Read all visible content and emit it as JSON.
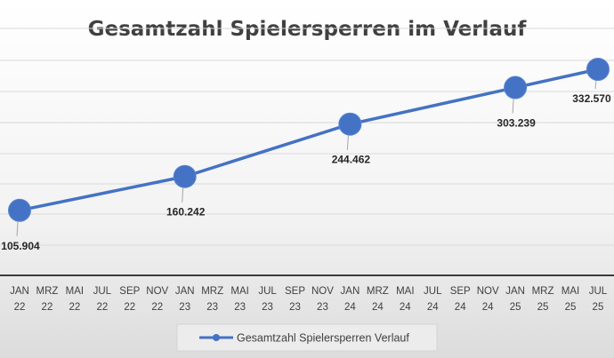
{
  "chart_data": {
    "type": "line",
    "title": "Gesamtzahl Spielersperren im Verlauf",
    "xlabel": "",
    "ylabel": "",
    "x_ticks": [
      [
        "JAN",
        "22"
      ],
      [
        "MRZ",
        "22"
      ],
      [
        "MAI",
        "22"
      ],
      [
        "JUL",
        "22"
      ],
      [
        "SEP",
        "22"
      ],
      [
        "NOV",
        "22"
      ],
      [
        "JAN",
        "23"
      ],
      [
        "MRZ",
        "23"
      ],
      [
        "MAI",
        "23"
      ],
      [
        "JUL",
        "23"
      ],
      [
        "SEP",
        "23"
      ],
      [
        "NOV",
        "23"
      ],
      [
        "JAN",
        "24"
      ],
      [
        "MRZ",
        "24"
      ],
      [
        "MAI",
        "24"
      ],
      [
        "JUL",
        "24"
      ],
      [
        "SEP",
        "24"
      ],
      [
        "NOV",
        "24"
      ],
      [
        "JAN",
        "25"
      ],
      [
        "MRZ",
        "25"
      ],
      [
        "MAI",
        "25"
      ],
      [
        "JUL",
        "25"
      ]
    ],
    "series": [
      {
        "name": "Gesamtzahl Spielersperren Verlauf",
        "color": "#4472c4",
        "points": [
          {
            "x": "JAN 22",
            "y": 105904,
            "label": "105.904"
          },
          {
            "x": "JAN 23",
            "y": 160242,
            "label": "160.242"
          },
          {
            "x": "JAN 24",
            "y": 244462,
            "label": "244.462"
          },
          {
            "x": "JAN 25",
            "y": 303239,
            "label": "303.239"
          },
          {
            "x": "JUL 25",
            "y": 332570,
            "label": "332.570"
          }
        ]
      }
    ],
    "grid": true,
    "legend": "bottom"
  }
}
